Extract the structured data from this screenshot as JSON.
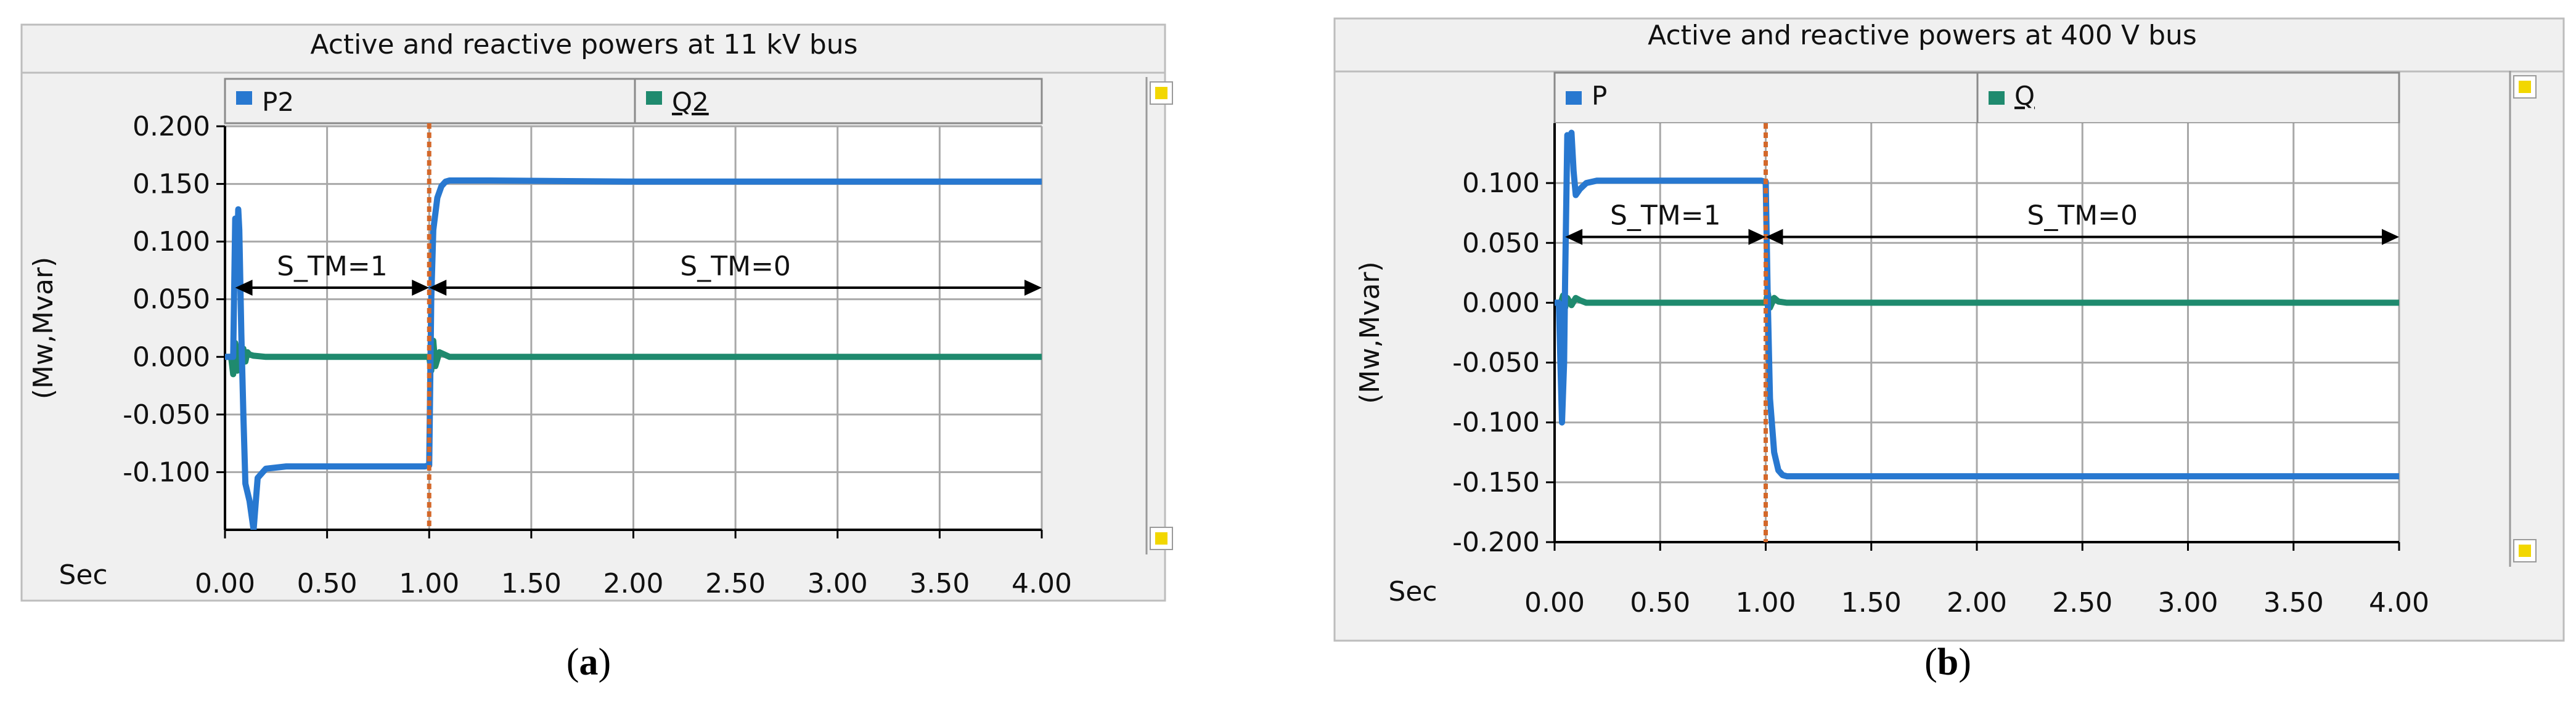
{
  "colors": {
    "panel": "#f0f0f0",
    "panel_border": "#bdbdbd",
    "grid": "#a8a8a8",
    "p_series": "#2878d0",
    "q_series": "#1f8a6e",
    "switch_line": "#d4682a",
    "scroll_icon": "#f2d700"
  },
  "chart_data": [
    {
      "id": "a",
      "type": "line",
      "title": "Active and reactive powers at 11 kV bus",
      "ylabel": "(Mw,Mvar)",
      "xlabel": "Sec",
      "xlim": [
        0,
        4.0
      ],
      "ylim": [
        -0.15,
        0.2
      ],
      "xticks": [
        "0.00",
        "0.50",
        "1.00",
        "1.50",
        "2.00",
        "2.50",
        "3.00",
        "3.50",
        "4.00"
      ],
      "yticks": [
        "0.200",
        "0.150",
        "0.100",
        "0.050",
        "0.000",
        "-0.050",
        "-0.100"
      ],
      "ytick_values": [
        0.2,
        0.15,
        0.1,
        0.05,
        0.0,
        -0.05,
        -0.1
      ],
      "grid": true,
      "legend_position": "top",
      "series": [
        {
          "name": "P2",
          "color_key": "p_series",
          "x": [
            0,
            0.02,
            0.04,
            0.05,
            0.06,
            0.065,
            0.07,
            0.08,
            0.09,
            0.1,
            0.12,
            0.14,
            0.16,
            0.2,
            0.3,
            0.6,
            0.98,
            1.0,
            1.01,
            1.02,
            1.04,
            1.06,
            1.08,
            1.1,
            1.15,
            1.3,
            2.0,
            3.0,
            4.0
          ],
          "y": [
            0.0,
            0.0,
            0.0,
            0.12,
            0.09,
            0.128,
            0.11,
            0.02,
            -0.05,
            -0.11,
            -0.125,
            -0.15,
            -0.105,
            -0.097,
            -0.095,
            -0.095,
            -0.095,
            -0.094,
            0.05,
            0.11,
            0.138,
            0.148,
            0.152,
            0.153,
            0.153,
            0.153,
            0.152,
            0.152,
            0.152
          ]
        },
        {
          "name": "Q2",
          "color_key": "q_series",
          "x": [
            0,
            0.03,
            0.04,
            0.05,
            0.06,
            0.07,
            0.08,
            0.09,
            0.1,
            0.11,
            0.12,
            0.14,
            0.2,
            0.98,
            1.0,
            1.01,
            1.02,
            1.03,
            1.05,
            1.1,
            2.0,
            4.0
          ],
          "y": [
            0.0,
            0.0,
            -0.015,
            0.012,
            -0.012,
            0.009,
            -0.007,
            0.007,
            -0.004,
            0.004,
            0.002,
            0.001,
            0.0,
            0.0,
            0.0,
            -0.012,
            0.014,
            -0.008,
            0.004,
            0.0,
            0.0,
            0.0
          ]
        }
      ],
      "switch_time": 1.0,
      "annotations": [
        {
          "text": "S_TM=1",
          "x_from": 0.05,
          "x_to": 1.0,
          "y": 0.06
        },
        {
          "text": "S_TM=0",
          "x_from": 1.0,
          "x_to": 4.0,
          "y": 0.06
        }
      ]
    },
    {
      "id": "b",
      "type": "line",
      "title": "Active and reactive powers at 400 V bus",
      "ylabel": "(Mw,Mvar)",
      "xlabel": "Sec",
      "xlim": [
        0,
        4.0
      ],
      "ylim": [
        -0.2,
        0.15
      ],
      "xticks": [
        "0.00",
        "0.50",
        "1.00",
        "1.50",
        "2.00",
        "2.50",
        "3.00",
        "3.50",
        "4.00"
      ],
      "yticks": [
        "0.100",
        "0.050",
        "0.000",
        "-0.050",
        "-0.100",
        "-0.150",
        "-0.200"
      ],
      "ytick_values": [
        0.1,
        0.05,
        0.0,
        -0.05,
        -0.1,
        -0.15,
        -0.2
      ],
      "grid": true,
      "legend_position": "top",
      "series": [
        {
          "name": "P",
          "color_key": "p_series",
          "x": [
            0,
            0.02,
            0.035,
            0.045,
            0.05,
            0.06,
            0.07,
            0.08,
            0.09,
            0.1,
            0.12,
            0.15,
            0.2,
            0.5,
            0.98,
            1.0,
            1.01,
            1.02,
            1.04,
            1.06,
            1.08,
            1.1,
            1.2,
            2.0,
            3.0,
            4.0
          ],
          "y": [
            0.0,
            0.0,
            -0.1,
            -0.05,
            0.02,
            0.14,
            0.12,
            0.142,
            0.11,
            0.09,
            0.095,
            0.1,
            0.102,
            0.102,
            0.102,
            0.101,
            0.0,
            -0.08,
            -0.125,
            -0.14,
            -0.144,
            -0.145,
            -0.145,
            -0.145,
            -0.145,
            -0.145
          ]
        },
        {
          "name": "Q",
          "color_key": "q_series",
          "x": [
            0,
            0.03,
            0.04,
            0.05,
            0.06,
            0.08,
            0.1,
            0.12,
            0.15,
            0.98,
            1.0,
            1.01,
            1.02,
            1.04,
            1.06,
            1.1,
            2.0,
            4.0
          ],
          "y": [
            0.0,
            0.0,
            0.006,
            -0.004,
            0.004,
            -0.002,
            0.004,
            0.002,
            0.0,
            0.0,
            0.0,
            0.008,
            -0.004,
            0.004,
            0.001,
            0.0,
            0.0,
            0.0
          ]
        }
      ],
      "switch_time": 1.0,
      "annotations": [
        {
          "text": "S_TM=1",
          "x_from": 0.05,
          "x_to": 1.0,
          "y": 0.055
        },
        {
          "text": "S_TM=0",
          "x_from": 1.0,
          "x_to": 4.0,
          "y": 0.055
        }
      ]
    }
  ],
  "captions": {
    "a": "a",
    "b": "b"
  }
}
